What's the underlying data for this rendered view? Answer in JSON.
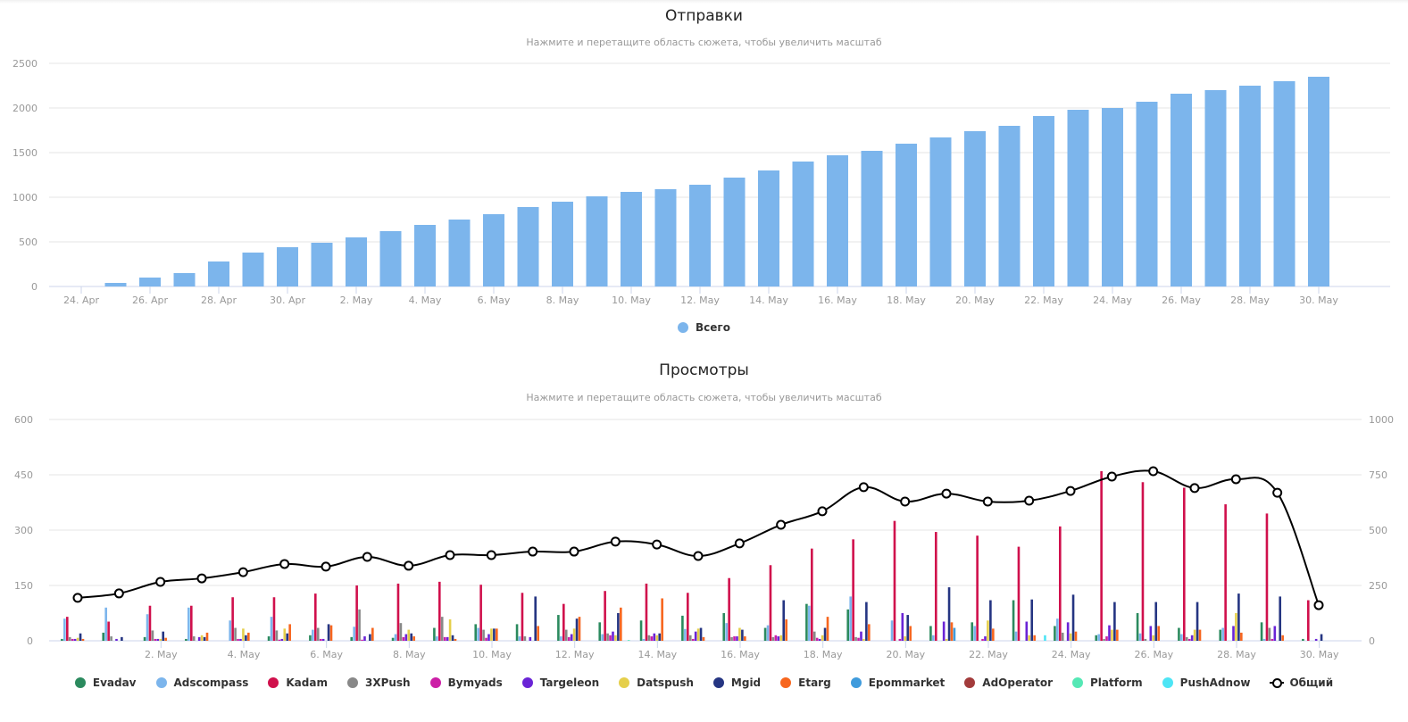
{
  "chart_data": [
    {
      "type": "bar",
      "title": "Отправки",
      "subtitle": "Нажмите и перетащите область сюжета, чтобы увеличить масштаб",
      "xlabel": "",
      "ylabel": "",
      "ylim": [
        0,
        2500
      ],
      "yticks": [
        0,
        500,
        1000,
        1500,
        2000,
        2500
      ],
      "grid": true,
      "legend_position": "bottom-center",
      "categories": [
        "24. Apr",
        "25. Apr",
        "26. Apr",
        "27. Apr",
        "28. Apr",
        "29. Apr",
        "30. Apr",
        "1. May",
        "2. May",
        "3. May",
        "4. May",
        "5. May",
        "6. May",
        "7. May",
        "8. May",
        "9. May",
        "10. May",
        "11. May",
        "12. May",
        "13. May",
        "14. May",
        "15. May",
        "16. May",
        "17. May",
        "18. May",
        "19. May",
        "20. May",
        "21. May",
        "22. May",
        "23. May",
        "24. May",
        "25. May",
        "26. May",
        "27. May",
        "28. May",
        "29. May",
        "30. May"
      ],
      "xtick_labels": [
        "24. Apr",
        "26. Apr",
        "28. Apr",
        "30. Apr",
        "2. May",
        "4. May",
        "6. May",
        "8. May",
        "10. May",
        "12. May",
        "14. May",
        "16. May",
        "18. May",
        "20. May",
        "22. May",
        "24. May",
        "26. May",
        "28. May",
        "30. May"
      ],
      "series": [
        {
          "name": "Всего",
          "color": "#7cb5ec",
          "values": [
            0,
            40,
            100,
            150,
            280,
            380,
            440,
            490,
            550,
            620,
            690,
            750,
            810,
            890,
            950,
            1010,
            1060,
            1090,
            1140,
            1220,
            1300,
            1400,
            1470,
            1520,
            1600,
            1670,
            1740,
            1800,
            1910,
            1980,
            2000,
            2070,
            2160,
            2200,
            2250,
            2300,
            2350
          ]
        }
      ]
    },
    {
      "type": "bar",
      "title": "Просмотры",
      "subtitle": "Нажмите и перетащите область сюжета, чтобы увеличить масштаб",
      "xlabel": "",
      "ylabel": "",
      "ylim": [
        0,
        600
      ],
      "yticks": [
        0,
        150,
        300,
        450,
        600
      ],
      "ylim_right": [
        0,
        1000
      ],
      "yticks_right": [
        0,
        250,
        500,
        750,
        1000
      ],
      "grid": true,
      "legend_position": "bottom-center",
      "categories": [
        "1. May",
        "2. May",
        "3. May",
        "4. May",
        "5. May",
        "6. May",
        "7. May",
        "8. May",
        "9. May",
        "10. May",
        "11. May",
        "12. May",
        "13. May",
        "14. May",
        "15. May",
        "16. May",
        "17. May",
        "18. May",
        "19. May",
        "20. May",
        "21. May",
        "22. May",
        "23. May",
        "24. May",
        "25. May",
        "26. May",
        "27. May",
        "28. May",
        "29. May",
        "30. May",
        "31. May"
      ],
      "xtick_labels": [
        "2. May",
        "4. May",
        "6. May",
        "8. May",
        "10. May",
        "12. May",
        "14. May",
        "16. May",
        "18. May",
        "20. May",
        "22. May",
        "24. May",
        "26. May",
        "28. May",
        "30. May"
      ],
      "series": [
        {
          "name": "Evadav",
          "color": "#2b8a5e",
          "values": [
            5,
            22,
            10,
            5,
            0,
            12,
            15,
            10,
            8,
            35,
            45,
            45,
            70,
            50,
            55,
            68,
            75,
            35,
            100,
            85,
            0,
            40,
            50,
            110,
            40,
            15,
            75,
            35,
            30,
            50,
            5
          ]
        },
        {
          "name": "Adscompass",
          "color": "#7cb5ec",
          "values": [
            60,
            90,
            72,
            90,
            55,
            65,
            30,
            38,
            18,
            12,
            35,
            12,
            12,
            18,
            5,
            32,
            48,
            42,
            95,
            120,
            55,
            15,
            40,
            25,
            60,
            18,
            20,
            18,
            35,
            5,
            0
          ]
        },
        {
          "name": "Kadam",
          "color": "#d0104c",
          "values": [
            65,
            52,
            95,
            95,
            118,
            118,
            128,
            150,
            155,
            160,
            152,
            130,
            100,
            135,
            155,
            130,
            170,
            205,
            250,
            275,
            325,
            295,
            285,
            255,
            310,
            460,
            430,
            415,
            370,
            345,
            110
          ]
        },
        {
          "name": "3XPush",
          "color": "#888888",
          "values": [
            10,
            12,
            28,
            12,
            35,
            28,
            35,
            85,
            48,
            65,
            30,
            12,
            30,
            20,
            15,
            15,
            10,
            10,
            25,
            10,
            0,
            0,
            0,
            0,
            22,
            5,
            5,
            10,
            0,
            35,
            0
          ]
        },
        {
          "name": "Bymyads",
          "color": "#cc1fa6",
          "values": [
            5,
            0,
            5,
            0,
            5,
            3,
            5,
            3,
            10,
            10,
            8,
            0,
            10,
            15,
            12,
            5,
            12,
            15,
            8,
            8,
            5,
            0,
            5,
            0,
            0,
            12,
            0,
            5,
            0,
            5,
            0
          ]
        },
        {
          "name": "Targeleon",
          "color": "#6a24d6",
          "values": [
            5,
            5,
            5,
            10,
            5,
            5,
            5,
            12,
            18,
            10,
            18,
            10,
            18,
            25,
            20,
            25,
            12,
            12,
            5,
            25,
            75,
            52,
            12,
            52,
            50,
            42,
            40,
            15,
            40,
            40,
            5
          ]
        },
        {
          "name": "Datspush",
          "color": "#e5cf4b",
          "values": [
            8,
            0,
            5,
            15,
            33,
            33,
            0,
            0,
            30,
            58,
            33,
            0,
            33,
            15,
            15,
            33,
            35,
            15,
            15,
            5,
            12,
            5,
            55,
            15,
            20,
            30,
            15,
            30,
            75,
            0,
            0
          ]
        },
        {
          "name": "Mgid",
          "color": "#253582",
          "values": [
            20,
            10,
            25,
            10,
            15,
            20,
            45,
            18,
            20,
            15,
            33,
            120,
            60,
            75,
            20,
            35,
            30,
            110,
            35,
            105,
            70,
            145,
            110,
            112,
            125,
            105,
            105,
            105,
            128,
            120,
            18
          ]
        },
        {
          "name": "Etarg",
          "color": "#f7661e",
          "values": [
            5,
            0,
            8,
            22,
            22,
            45,
            42,
            35,
            12,
            5,
            33,
            40,
            65,
            90,
            115,
            10,
            12,
            58,
            65,
            45,
            40,
            50,
            33,
            15,
            25,
            30,
            40,
            30,
            22,
            15,
            0
          ]
        },
        {
          "name": "Epommarket",
          "color": "#3f9bdc",
          "values": [
            0,
            0,
            0,
            0,
            0,
            0,
            0,
            0,
            0,
            0,
            0,
            0,
            0,
            0,
            0,
            0,
            0,
            0,
            0,
            0,
            0,
            35,
            0,
            0,
            0,
            0,
            0,
            0,
            0,
            0,
            0
          ]
        },
        {
          "name": "AdOperator",
          "color": "#a23b3b",
          "values": [
            0,
            0,
            0,
            0,
            0,
            0,
            0,
            0,
            0,
            0,
            0,
            0,
            0,
            0,
            0,
            0,
            0,
            0,
            0,
            0,
            0,
            0,
            0,
            0,
            0,
            0,
            0,
            0,
            0,
            0,
            0
          ]
        },
        {
          "name": "Platform",
          "color": "#55e8b5",
          "values": [
            0,
            0,
            0,
            0,
            0,
            0,
            0,
            0,
            0,
            0,
            0,
            0,
            0,
            2,
            0,
            0,
            0,
            0,
            0,
            0,
            0,
            0,
            0,
            0,
            0,
            0,
            0,
            0,
            0,
            0,
            0
          ]
        },
        {
          "name": "PushAdnow",
          "color": "#4de5f5",
          "values": [
            0,
            0,
            0,
            0,
            0,
            0,
            0,
            0,
            0,
            0,
            0,
            0,
            0,
            0,
            0,
            0,
            0,
            0,
            0,
            0,
            0,
            0,
            0,
            15,
            0,
            0,
            0,
            0,
            0,
            0,
            0
          ]
        }
      ],
      "line_series": {
        "name": "Общий",
        "type": "spline",
        "axis": "right",
        "color": "#000000",
        "values": [
          194,
          214,
          266,
          282,
          310,
          347,
          335,
          379,
          339,
          387,
          387,
          403,
          403,
          448,
          435,
          383,
          440,
          524,
          585,
          694,
          629,
          665,
          629,
          633,
          677,
          742,
          766,
          690,
          730,
          669,
          161
        ]
      }
    }
  ]
}
